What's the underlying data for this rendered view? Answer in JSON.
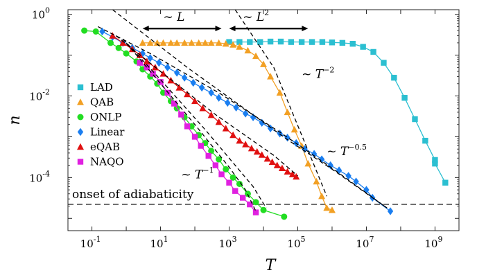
{
  "chart_data": {
    "type": "line",
    "xlabel": "T",
    "ylabel": "n",
    "xscale": "log",
    "yscale": "log",
    "xlim": [
      0.02,
      5000000000.0
    ],
    "ylim": [
      5e-06,
      1.3
    ],
    "grid": false,
    "legend_position": "left",
    "x_ticks": [
      {
        "value": 0.1,
        "base": "10",
        "exp": "-1"
      },
      {
        "value": 10,
        "base": "10",
        "exp": "1"
      },
      {
        "value": 1000,
        "base": "10",
        "exp": "3"
      },
      {
        "value": 100000,
        "base": "10",
        "exp": "5"
      },
      {
        "value": 10000000,
        "base": "10",
        "exp": "7"
      },
      {
        "value": 1000000000,
        "base": "10",
        "exp": "9"
      }
    ],
    "y_ticks": [
      {
        "value": 1,
        "base": "10",
        "exp": "0"
      },
      {
        "value": 0.01,
        "base": "10",
        "exp": "-2"
      },
      {
        "value": 0.0001,
        "base": "10",
        "exp": "-4"
      }
    ],
    "series": [
      {
        "name": "LAD",
        "color": "#2bbfd1",
        "marker": "square",
        "points": [
          [
            1000,
            0.21
          ],
          [
            2000,
            0.21
          ],
          [
            4000,
            0.21
          ],
          [
            8000,
            0.21
          ],
          [
            16000,
            0.215
          ],
          [
            32000,
            0.215
          ],
          [
            64000,
            0.21
          ],
          [
            130000,
            0.21
          ],
          [
            260000,
            0.21
          ],
          [
            520000,
            0.21
          ],
          [
            1000000,
            0.205
          ],
          [
            2000000,
            0.2
          ],
          [
            4000000,
            0.19
          ],
          [
            8000000,
            0.16
          ],
          [
            16000000,
            0.12
          ],
          [
            32000000,
            0.065
          ],
          [
            64000000,
            0.028
          ],
          [
            130000000,
            0.009
          ],
          [
            260000000,
            0.0027
          ],
          [
            520000000,
            0.0008
          ],
          [
            1000000000,
            0.00027
          ],
          [
            1000000000,
            0.00022
          ],
          [
            2000000000,
            7.5e-05
          ]
        ]
      },
      {
        "name": "QAB",
        "color": "#f2a024",
        "marker": "triangle-up",
        "points": [
          [
            3,
            0.2
          ],
          [
            5,
            0.2
          ],
          [
            8,
            0.2
          ],
          [
            12,
            0.2
          ],
          [
            20,
            0.2
          ],
          [
            30,
            0.2
          ],
          [
            50,
            0.2
          ],
          [
            80,
            0.2
          ],
          [
            130,
            0.2
          ],
          [
            200,
            0.2
          ],
          [
            300,
            0.2
          ],
          [
            500,
            0.2
          ],
          [
            800,
            0.19
          ],
          [
            1300,
            0.18
          ],
          [
            2000,
            0.16
          ],
          [
            3500,
            0.13
          ],
          [
            6000,
            0.095
          ],
          [
            10000,
            0.06
          ],
          [
            16000,
            0.03
          ],
          [
            30000,
            0.012
          ],
          [
            50000,
            0.004
          ],
          [
            80000,
            0.0015
          ],
          [
            130000,
            0.0006
          ],
          [
            200000,
            0.00022
          ],
          [
            350000,
            8e-05
          ],
          [
            500000,
            3.5e-05
          ],
          [
            700000,
            1.8e-05
          ],
          [
            1000000,
            1.6e-05
          ]
        ]
      },
      {
        "name": "ONLP",
        "color": "#22dd22",
        "marker": "circle",
        "points": [
          [
            0.06,
            0.4
          ],
          [
            0.13,
            0.38
          ],
          [
            0.35,
            0.2
          ],
          [
            0.6,
            0.15
          ],
          [
            1,
            0.11
          ],
          [
            2,
            0.07
          ],
          [
            3,
            0.045
          ],
          [
            5,
            0.03
          ],
          [
            8,
            0.02
          ],
          [
            12,
            0.012
          ],
          [
            20,
            0.0075
          ],
          [
            30,
            0.005
          ],
          [
            50,
            0.003
          ],
          [
            80,
            0.0018
          ],
          [
            130,
            0.0011
          ],
          [
            200,
            0.0007
          ],
          [
            300,
            0.00045
          ],
          [
            500,
            0.00028
          ],
          [
            800,
            0.00016
          ],
          [
            1300,
            0.0001
          ],
          [
            2000,
            7e-05
          ],
          [
            3500,
            4e-05
          ],
          [
            6000,
            2.5e-05
          ],
          [
            10000,
            1.6e-05
          ],
          [
            40000,
            1.1e-05
          ]
        ]
      },
      {
        "name": "Linear",
        "color": "#1a7ef0",
        "marker": "diamond",
        "points": [
          [
            0.2,
            0.38
          ],
          [
            0.4,
            0.28
          ],
          [
            0.8,
            0.2
          ],
          [
            1.5,
            0.15
          ],
          [
            3,
            0.11
          ],
          [
            5,
            0.085
          ],
          [
            9,
            0.065
          ],
          [
            16,
            0.05
          ],
          [
            30,
            0.037
          ],
          [
            50,
            0.028
          ],
          [
            90,
            0.021
          ],
          [
            160,
            0.016
          ],
          [
            300,
            0.012
          ],
          [
            500,
            0.009
          ],
          [
            900,
            0.0068
          ],
          [
            1600,
            0.0052
          ],
          [
            3000,
            0.0037
          ],
          [
            5000,
            0.003
          ],
          [
            9000,
            0.0022
          ],
          [
            16000,
            0.0016
          ],
          [
            30000,
            0.0012
          ],
          [
            50000,
            0.00095
          ],
          [
            90000,
            0.0007
          ],
          [
            160000,
            0.0005
          ],
          [
            300000,
            0.00038
          ],
          [
            500000,
            0.00028
          ],
          [
            900000,
            0.0002
          ],
          [
            1600000,
            0.00015
          ],
          [
            3000000,
            0.00011
          ],
          [
            5000000,
            8e-05
          ],
          [
            10000000,
            5e-05
          ],
          [
            15000000,
            3.2e-05
          ],
          [
            50000000,
            1.5e-05
          ]
        ]
      },
      {
        "name": "eQAB",
        "color": "#e01010",
        "marker": "triangle-up",
        "points": [
          [
            0.4,
            0.3
          ],
          [
            0.8,
            0.2
          ],
          [
            1.5,
            0.14
          ],
          [
            2.5,
            0.1
          ],
          [
            4,
            0.07
          ],
          [
            7,
            0.05
          ],
          [
            12,
            0.035
          ],
          [
            20,
            0.024
          ],
          [
            35,
            0.016
          ],
          [
            60,
            0.011
          ],
          [
            100,
            0.0075
          ],
          [
            170,
            0.005
          ],
          [
            300,
            0.0034
          ],
          [
            500,
            0.0023
          ],
          [
            800,
            0.0016
          ],
          [
            1300,
            0.0011
          ],
          [
            2000,
            0.0008
          ],
          [
            3000,
            0.00065
          ],
          [
            4500,
            0.00052
          ],
          [
            6500,
            0.00043
          ],
          [
            9000,
            0.00036
          ],
          [
            13000,
            0.00029
          ],
          [
            18000,
            0.00024
          ],
          [
            25000,
            0.0002
          ],
          [
            35000,
            0.00017
          ],
          [
            50000,
            0.00014
          ],
          [
            70000,
            0.00012
          ],
          [
            90000,
            0.000105
          ]
        ]
      },
      {
        "name": "NAQO",
        "color": "#e020e0",
        "marker": "square",
        "points": [
          [
            2.5,
            0.065
          ],
          [
            4,
            0.05
          ],
          [
            6,
            0.035
          ],
          [
            10,
            0.022
          ],
          [
            16,
            0.012
          ],
          [
            25,
            0.0065
          ],
          [
            40,
            0.0035
          ],
          [
            60,
            0.0018
          ],
          [
            100,
            0.001
          ],
          [
            150,
            0.0006
          ],
          [
            250,
            0.00034
          ],
          [
            400,
            0.0002
          ],
          [
            600,
            0.00012
          ],
          [
            1000,
            7.5e-05
          ],
          [
            1500,
            4.7e-05
          ],
          [
            2500,
            3.2e-05
          ],
          [
            4000,
            2.2e-05
          ],
          [
            6000,
            1.4e-05
          ]
        ]
      }
    ],
    "guides": [
      {
        "label_base": "~ L",
        "label_exp": "",
        "points": [
          [
            0.4,
            1.3
          ],
          [
            60,
            0.05
          ],
          [
            2000,
            0.006
          ],
          [
            50000,
            0.00085
          ],
          [
            1000000,
            0.00016
          ],
          [
            40000000,
            1.8e-05
          ]
        ]
      },
      {
        "points": [
          [
            0.15,
            0.5
          ],
          [
            5,
            0.11
          ],
          [
            500,
            0.012
          ],
          [
            30000,
            0.0013
          ],
          [
            1000000,
            0.00017
          ],
          [
            40000000,
            1.8e-05
          ]
        ]
      },
      {
        "points": [
          [
            0.5,
            0.3
          ],
          [
            10,
            0.04
          ],
          [
            400,
            0.0035
          ],
          [
            20000,
            0.00035
          ],
          [
            100000,
            0.00011
          ]
        ]
      },
      {
        "points": [
          [
            0.8,
            0.25
          ],
          [
            10,
            0.025
          ],
          [
            200,
            0.0015
          ],
          [
            5000,
            6e-05
          ],
          [
            12000,
            1.8e-05
          ]
        ]
      },
      {
        "points": [
          [
            1,
            0.2
          ],
          [
            10,
            0.02
          ],
          [
            100,
            0.002
          ],
          [
            1000,
            0.00018
          ],
          [
            3000,
            5e-05
          ],
          [
            6000,
            1.5e-05
          ]
        ]
      },
      {
        "points": [
          [
            1500,
            1.3
          ],
          [
            20000,
            0.05
          ],
          [
            300000,
            0.0002
          ],
          [
            700000,
            3.5e-05
          ]
        ]
      }
    ],
    "hline": {
      "value": 2.2e-05,
      "label": "onset of adiabaticity"
    },
    "annotations": {
      "L": {
        "prefix": "~ ",
        "base": "L",
        "exp": "",
        "x_range": [
          3,
          600
        ],
        "y": 0.45
      },
      "L2": {
        "prefix": "~ ",
        "base": "L",
        "exp": "2",
        "x_range": [
          1000,
          200000
        ],
        "y": 0.45
      },
      "T_minus2": {
        "prefix": "~ ",
        "base": "T",
        "exp": "−2",
        "x": 130000,
        "y": 0.035
      },
      "T_minus05": {
        "prefix": "~ ",
        "base": "T",
        "exp": "−0.5",
        "x": 700000,
        "y": 0.00045
      },
      "T_minus1": {
        "prefix": "~ ",
        "base": "T",
        "exp": "−1",
        "x": 40,
        "y": 0.00012
      }
    }
  }
}
